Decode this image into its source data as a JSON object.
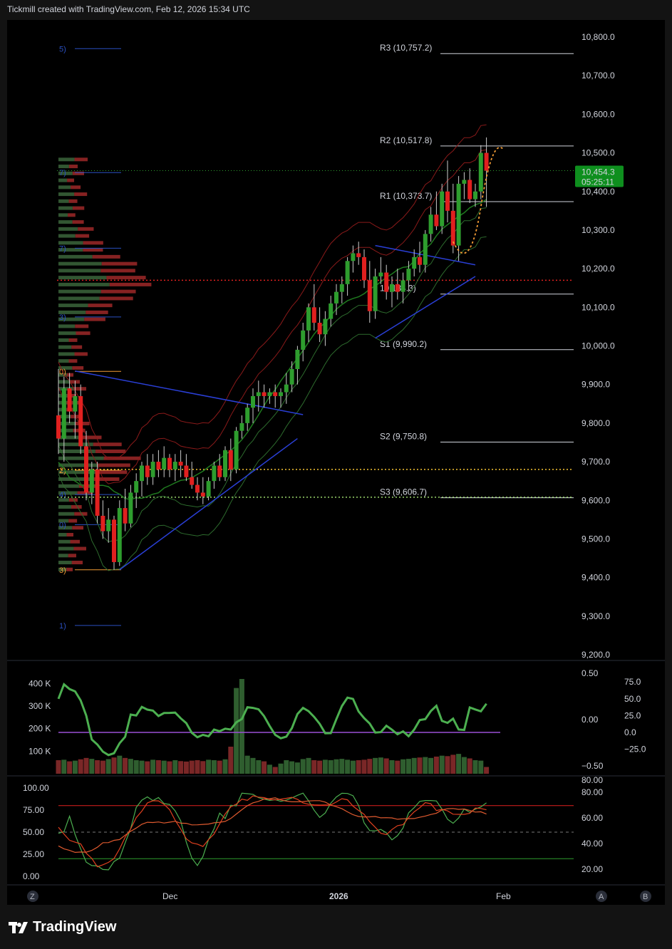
{
  "header": {
    "title": "Tickmill created with TradingView.com, Feb 12, 2026 15:34 UTC"
  },
  "footer": {
    "brand": "TradingView",
    "logo_icon": "tradingview-logo-icon"
  },
  "colors": {
    "background": "#000000",
    "bull": "#2e9d2e",
    "bear": "#e0201f",
    "price_badge": "#0e8f1e",
    "pivot_line": "#d1d4dc",
    "fib_blue": "#2a4fbf",
    "fib_orange": "#f39c35",
    "volume_profile_bull": "#3f6b3f",
    "volume_profile_bear": "#a82a2a"
  },
  "price_axis": {
    "ticks": [
      "10,800.0",
      "10,700.0",
      "10,600.0",
      "10,500.0",
      "10,400.0",
      "10,300.0",
      "10,200.0",
      "10,100.0",
      "10,000.0",
      "9,900.0",
      "9,800.0",
      "9,700.0",
      "9,600.0",
      "9,500.0",
      "9,400.0",
      "9,300.0",
      "9,200.0"
    ],
    "tick_values": [
      10800,
      10700,
      10600,
      10500,
      10400,
      10300,
      10200,
      10100,
      10000,
      9900,
      9800,
      9700,
      9600,
      9500,
      9400,
      9300,
      9200
    ],
    "range": [
      9200,
      10800
    ]
  },
  "price_badge": {
    "price": "10,454.3",
    "countdown": "05:25:11",
    "value": 10454.3
  },
  "pivots": [
    {
      "label": "R3 (10,757.2)",
      "value": 10757.2
    },
    {
      "label": "R2 (10,517.8)",
      "value": 10517.8
    },
    {
      "label": "R1 (10,373.7)",
      "value": 10373.7
    },
    {
      "label": "P (10,134.3)",
      "display": "10,134.3)",
      "value": 10134.3
    },
    {
      "label": "S1 (9,990.2)",
      "value": 9990.2
    },
    {
      "label": "S2 (9,750.8)",
      "value": 9750.8
    },
    {
      "label": "S3 (9,606.7)",
      "value": 9606.7
    }
  ],
  "fib_labels": [
    {
      "label": "5)",
      "value": 10770,
      "color": "#2a4fbf"
    },
    {
      "label": "7)",
      "value": 10449,
      "color": "#2a4fbf"
    },
    {
      "label": "7)",
      "value": 10253,
      "color": "#2a4fbf"
    },
    {
      "label": "3)",
      "value": 10075,
      "color": "#2a4fbf"
    },
    {
      "label": "0)",
      "value": 9934,
      "color": "#f39c35"
    },
    {
      "label": "2)",
      "value": 9678,
      "color": "#f39c35"
    },
    {
      "label": "4)",
      "value": 9615,
      "color": "#2a4fbf"
    },
    {
      "label": "0)",
      "value": 9537,
      "color": "#2a4fbf"
    },
    {
      "label": "3)",
      "value": 9420,
      "color": "#f39c35"
    },
    {
      "label": "1)",
      "value": 9276,
      "color": "#2a4fbf"
    }
  ],
  "time_axis": {
    "labels": [
      {
        "label": "Dec",
        "bar": 20,
        "bold": false
      },
      {
        "label": "2026",
        "bar": 50,
        "bold": true
      },
      {
        "label": "Feb",
        "bar": 80,
        "bold": false
      }
    ],
    "left_button": "Z",
    "right_buttons": [
      "A",
      "B"
    ]
  },
  "panel2": {
    "volume_ticks": [
      "400 K",
      "300 K",
      "200 K",
      "100 K"
    ],
    "volume_tick_values": [
      400,
      300,
      200,
      100
    ],
    "mid_ticks": [
      "0.50",
      "0.00",
      "−0.50"
    ],
    "mid_tick_values": [
      0.5,
      0.0,
      -0.5
    ],
    "right_ticks": [
      "75.0",
      "50.0",
      "25.0",
      "0.0",
      "−25.0"
    ],
    "right_tick_values": [
      75,
      50,
      25,
      0,
      -25
    ]
  },
  "panel3": {
    "left_ticks": [
      "100.00",
      "75.00",
      "50.00",
      "25.00",
      "0.00"
    ],
    "left_tick_values": [
      100,
      75,
      50,
      25,
      0
    ],
    "right_ticks": [
      "80.00",
      "60.00",
      "40.00",
      "20.00"
    ],
    "right_tick_values": [
      80,
      60,
      40,
      20
    ],
    "right_top_partial": "80.00"
  },
  "chart_data": {
    "type": "candlestick",
    "symbol_hint": "",
    "ylim": [
      9200,
      10800
    ],
    "bars": [
      [
        9820,
        9940,
        9720,
        9760
      ],
      [
        9760,
        9920,
        9700,
        9890
      ],
      [
        9890,
        9930,
        9800,
        9830
      ],
      [
        9830,
        9910,
        9760,
        9870
      ],
      [
        9870,
        9900,
        9720,
        9740
      ],
      [
        9740,
        9780,
        9600,
        9620
      ],
      [
        9620,
        9700,
        9590,
        9680
      ],
      [
        9680,
        9700,
        9540,
        9560
      ],
      [
        9560,
        9600,
        9500,
        9520
      ],
      [
        9520,
        9580,
        9490,
        9550
      ],
      [
        9550,
        9560,
        9420,
        9440
      ],
      [
        9440,
        9600,
        9430,
        9580
      ],
      [
        9580,
        9630,
        9520,
        9540
      ],
      [
        9540,
        9640,
        9530,
        9620
      ],
      [
        9620,
        9670,
        9580,
        9650
      ],
      [
        9650,
        9700,
        9610,
        9690
      ],
      [
        9690,
        9720,
        9640,
        9660
      ],
      [
        9660,
        9720,
        9640,
        9700
      ],
      [
        9700,
        9730,
        9660,
        9680
      ],
      [
        9680,
        9740,
        9660,
        9710
      ],
      [
        9710,
        9720,
        9660,
        9680
      ],
      [
        9680,
        9720,
        9650,
        9700
      ],
      [
        9700,
        9730,
        9660,
        9690
      ],
      [
        9690,
        9720,
        9650,
        9660
      ],
      [
        9660,
        9700,
        9630,
        9640
      ],
      [
        9640,
        9660,
        9600,
        9620
      ],
      [
        9620,
        9660,
        9590,
        9610
      ],
      [
        9610,
        9660,
        9600,
        9650
      ],
      [
        9650,
        9700,
        9630,
        9690
      ],
      [
        9690,
        9720,
        9650,
        9660
      ],
      [
        9660,
        9740,
        9650,
        9730
      ],
      [
        9730,
        9760,
        9650,
        9680
      ],
      [
        9680,
        9790,
        9670,
        9780
      ],
      [
        9780,
        9820,
        9760,
        9800
      ],
      [
        9800,
        9850,
        9780,
        9840
      ],
      [
        9840,
        9890,
        9800,
        9870
      ],
      [
        9870,
        9910,
        9830,
        9880
      ],
      [
        9880,
        9900,
        9840,
        9870
      ],
      [
        9870,
        9890,
        9850,
        9880
      ],
      [
        9880,
        9900,
        9840,
        9870
      ],
      [
        9870,
        9890,
        9840,
        9880
      ],
      [
        9880,
        9930,
        9850,
        9900
      ],
      [
        9900,
        9960,
        9880,
        9940
      ],
      [
        9940,
        10000,
        9900,
        9990
      ],
      [
        9990,
        10060,
        9960,
        10040
      ],
      [
        10040,
        10110,
        10010,
        10100
      ],
      [
        10100,
        10160,
        10040,
        10060
      ],
      [
        10060,
        10100,
        10010,
        10030
      ],
      [
        10030,
        10090,
        10000,
        10070
      ],
      [
        10070,
        10130,
        10050,
        10110
      ],
      [
        10110,
        10160,
        10080,
        10140
      ],
      [
        10140,
        10180,
        10110,
        10160
      ],
      [
        10160,
        10230,
        10130,
        10220
      ],
      [
        10220,
        10260,
        10190,
        10240
      ],
      [
        10240,
        10270,
        10210,
        10230
      ],
      [
        10230,
        10250,
        10150,
        10170
      ],
      [
        10170,
        10220,
        10060,
        10090
      ],
      [
        10090,
        10200,
        10070,
        10180
      ],
      [
        10180,
        10230,
        10160,
        10190
      ],
      [
        10190,
        10210,
        10120,
        10140
      ],
      [
        10140,
        10180,
        10100,
        10160
      ],
      [
        10160,
        10200,
        10120,
        10140
      ],
      [
        10140,
        10190,
        10110,
        10170
      ],
      [
        10170,
        10220,
        10140,
        10200
      ],
      [
        10200,
        10250,
        10180,
        10230
      ],
      [
        10230,
        10270,
        10190,
        10210
      ],
      [
        10210,
        10300,
        10190,
        10290
      ],
      [
        10290,
        10360,
        10270,
        10340
      ],
      [
        10340,
        10400,
        10300,
        10310
      ],
      [
        10310,
        10420,
        10290,
        10400
      ],
      [
        10400,
        10480,
        10320,
        10350
      ],
      [
        10350,
        10420,
        10240,
        10260
      ],
      [
        10260,
        10440,
        10220,
        10420
      ],
      [
        10420,
        10450,
        10380,
        10430
      ],
      [
        10430,
        10460,
        10370,
        10380
      ],
      [
        10380,
        10420,
        10360,
        10400
      ],
      [
        10400,
        10520,
        10380,
        10500
      ],
      [
        10500,
        10540,
        10360,
        10454
      ]
    ],
    "volume": [
      60,
      62,
      55,
      58,
      64,
      70,
      66,
      60,
      58,
      65,
      72,
      80,
      70,
      66,
      60,
      58,
      55,
      62,
      60,
      58,
      55,
      60,
      56,
      54,
      58,
      60,
      56,
      62,
      60,
      58,
      64,
      120,
      380,
      420,
      80,
      70,
      60,
      55,
      40,
      30,
      45,
      60,
      55,
      50,
      65,
      70,
      60,
      58,
      62,
      60,
      64,
      66,
      62,
      58,
      60,
      62,
      66,
      70,
      72,
      68,
      60,
      58,
      64,
      66,
      70,
      72,
      74,
      70,
      76,
      80,
      78,
      84,
      88,
      74,
      68,
      60,
      58,
      30
    ],
    "series": [
      {
        "name": "",
        "values": []
      }
    ],
    "xlabel": "",
    "ylabel": ""
  }
}
